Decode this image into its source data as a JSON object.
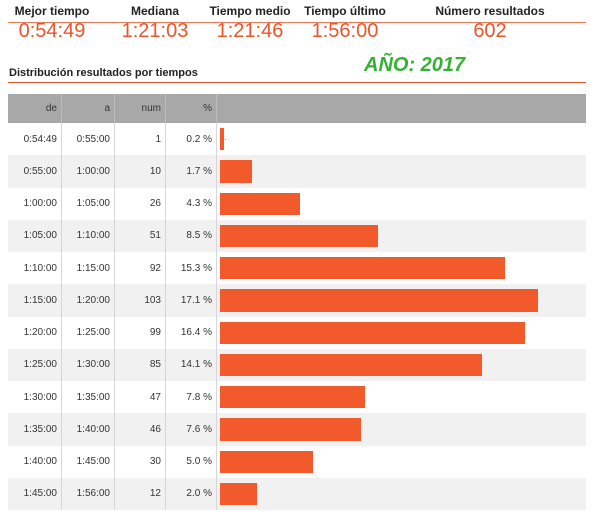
{
  "stats": [
    {
      "label": "Mejor tiempo",
      "value": "0:54:49"
    },
    {
      "label": "Mediana",
      "value": "1:21:03"
    },
    {
      "label": "Tiempo medio",
      "value": "1:21:46"
    },
    {
      "label": "Tiempo último",
      "value": "1:56:00"
    },
    {
      "label": "Número resultados",
      "value": "602"
    }
  ],
  "section_title": "Distribución resultados por tiempos",
  "year_label": "AÑO: 2017",
  "colors": {
    "accent": "#e8562a",
    "bar": "#f25a2b",
    "year": "#33b233",
    "header_bg": "#a8a8a8"
  },
  "chart_data": {
    "type": "bar",
    "orientation": "horizontal",
    "columns": [
      "de",
      "a",
      "num",
      "%"
    ],
    "rows": [
      {
        "de": "0:54:49",
        "a": "0:55:00",
        "num": 1,
        "pct": "0.2 %",
        "value": 0.2
      },
      {
        "de": "0:55:00",
        "a": "1:00:00",
        "num": 10,
        "pct": "1.7 %",
        "value": 1.7
      },
      {
        "de": "1:00:00",
        "a": "1:05:00",
        "num": 26,
        "pct": "4.3 %",
        "value": 4.3
      },
      {
        "de": "1:05:00",
        "a": "1:10:00",
        "num": 51,
        "pct": "8.5 %",
        "value": 8.5
      },
      {
        "de": "1:10:00",
        "a": "1:15:00",
        "num": 92,
        "pct": "15.3 %",
        "value": 15.3
      },
      {
        "de": "1:15:00",
        "a": "1:20:00",
        "num": 103,
        "pct": "17.1 %",
        "value": 17.1
      },
      {
        "de": "1:20:00",
        "a": "1:25:00",
        "num": 99,
        "pct": "16.4 %",
        "value": 16.4
      },
      {
        "de": "1:25:00",
        "a": "1:30:00",
        "num": 85,
        "pct": "14.1 %",
        "value": 14.1
      },
      {
        "de": "1:30:00",
        "a": "1:35:00",
        "num": 47,
        "pct": "7.8 %",
        "value": 7.8
      },
      {
        "de": "1:35:00",
        "a": "1:40:00",
        "num": 46,
        "pct": "7.6 %",
        "value": 7.6
      },
      {
        "de": "1:40:00",
        "a": "1:45:00",
        "num": 30,
        "pct": "5.0 %",
        "value": 5.0
      },
      {
        "de": "1:45:00",
        "a": "1:56:00",
        "num": 12,
        "pct": "2.0 %",
        "value": 2.0
      }
    ],
    "value_unit": "%",
    "bar_max_value": 17.1
  }
}
